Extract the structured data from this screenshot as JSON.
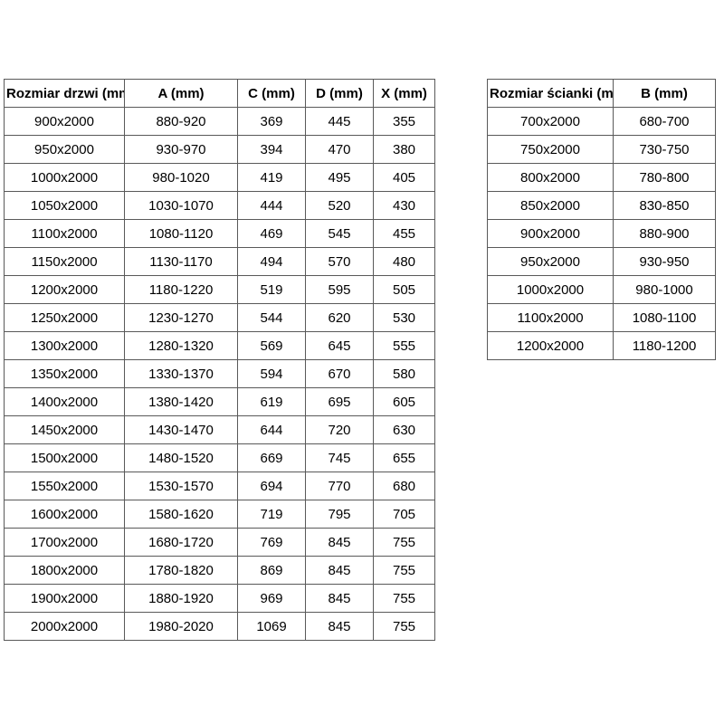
{
  "chart_data": [
    {
      "type": "table",
      "name": "door-size-table",
      "columns": [
        "Rozmiar drzwi (mm)",
        "A (mm)",
        "C (mm)",
        "D (mm)",
        "X (mm)"
      ],
      "rows": [
        [
          "900x2000",
          "880-920",
          "369",
          "445",
          "355"
        ],
        [
          "950x2000",
          "930-970",
          "394",
          "470",
          "380"
        ],
        [
          "1000x2000",
          "980-1020",
          "419",
          "495",
          "405"
        ],
        [
          "1050x2000",
          "1030-1070",
          "444",
          "520",
          "430"
        ],
        [
          "1100x2000",
          "1080-1120",
          "469",
          "545",
          "455"
        ],
        [
          "1150x2000",
          "1130-1170",
          "494",
          "570",
          "480"
        ],
        [
          "1200x2000",
          "1180-1220",
          "519",
          "595",
          "505"
        ],
        [
          "1250x2000",
          "1230-1270",
          "544",
          "620",
          "530"
        ],
        [
          "1300x2000",
          "1280-1320",
          "569",
          "645",
          "555"
        ],
        [
          "1350x2000",
          "1330-1370",
          "594",
          "670",
          "580"
        ],
        [
          "1400x2000",
          "1380-1420",
          "619",
          "695",
          "605"
        ],
        [
          "1450x2000",
          "1430-1470",
          "644",
          "720",
          "630"
        ],
        [
          "1500x2000",
          "1480-1520",
          "669",
          "745",
          "655"
        ],
        [
          "1550x2000",
          "1530-1570",
          "694",
          "770",
          "680"
        ],
        [
          "1600x2000",
          "1580-1620",
          "719",
          "795",
          "705"
        ],
        [
          "1700x2000",
          "1680-1720",
          "769",
          "845",
          "755"
        ],
        [
          "1800x2000",
          "1780-1820",
          "869",
          "845",
          "755"
        ],
        [
          "1900x2000",
          "1880-1920",
          "969",
          "845",
          "755"
        ],
        [
          "2000x2000",
          "1980-2020",
          "1069",
          "845",
          "755"
        ]
      ]
    },
    {
      "type": "table",
      "name": "wall-size-table",
      "columns": [
        "Rozmiar ścianki (mm)",
        "B (mm)"
      ],
      "rows": [
        [
          "700x2000",
          "680-700"
        ],
        [
          "750x2000",
          "730-750"
        ],
        [
          "800x2000",
          "780-800"
        ],
        [
          "850x2000",
          "830-850"
        ],
        [
          "900x2000",
          "880-900"
        ],
        [
          "950x2000",
          "930-950"
        ],
        [
          "1000x2000",
          "980-1000"
        ],
        [
          "1100x2000",
          "1080-1100"
        ],
        [
          "1200x2000",
          "1180-1200"
        ]
      ]
    }
  ],
  "colors": {
    "border": "#595959",
    "text": "#000000",
    "background": "#ffffff"
  }
}
